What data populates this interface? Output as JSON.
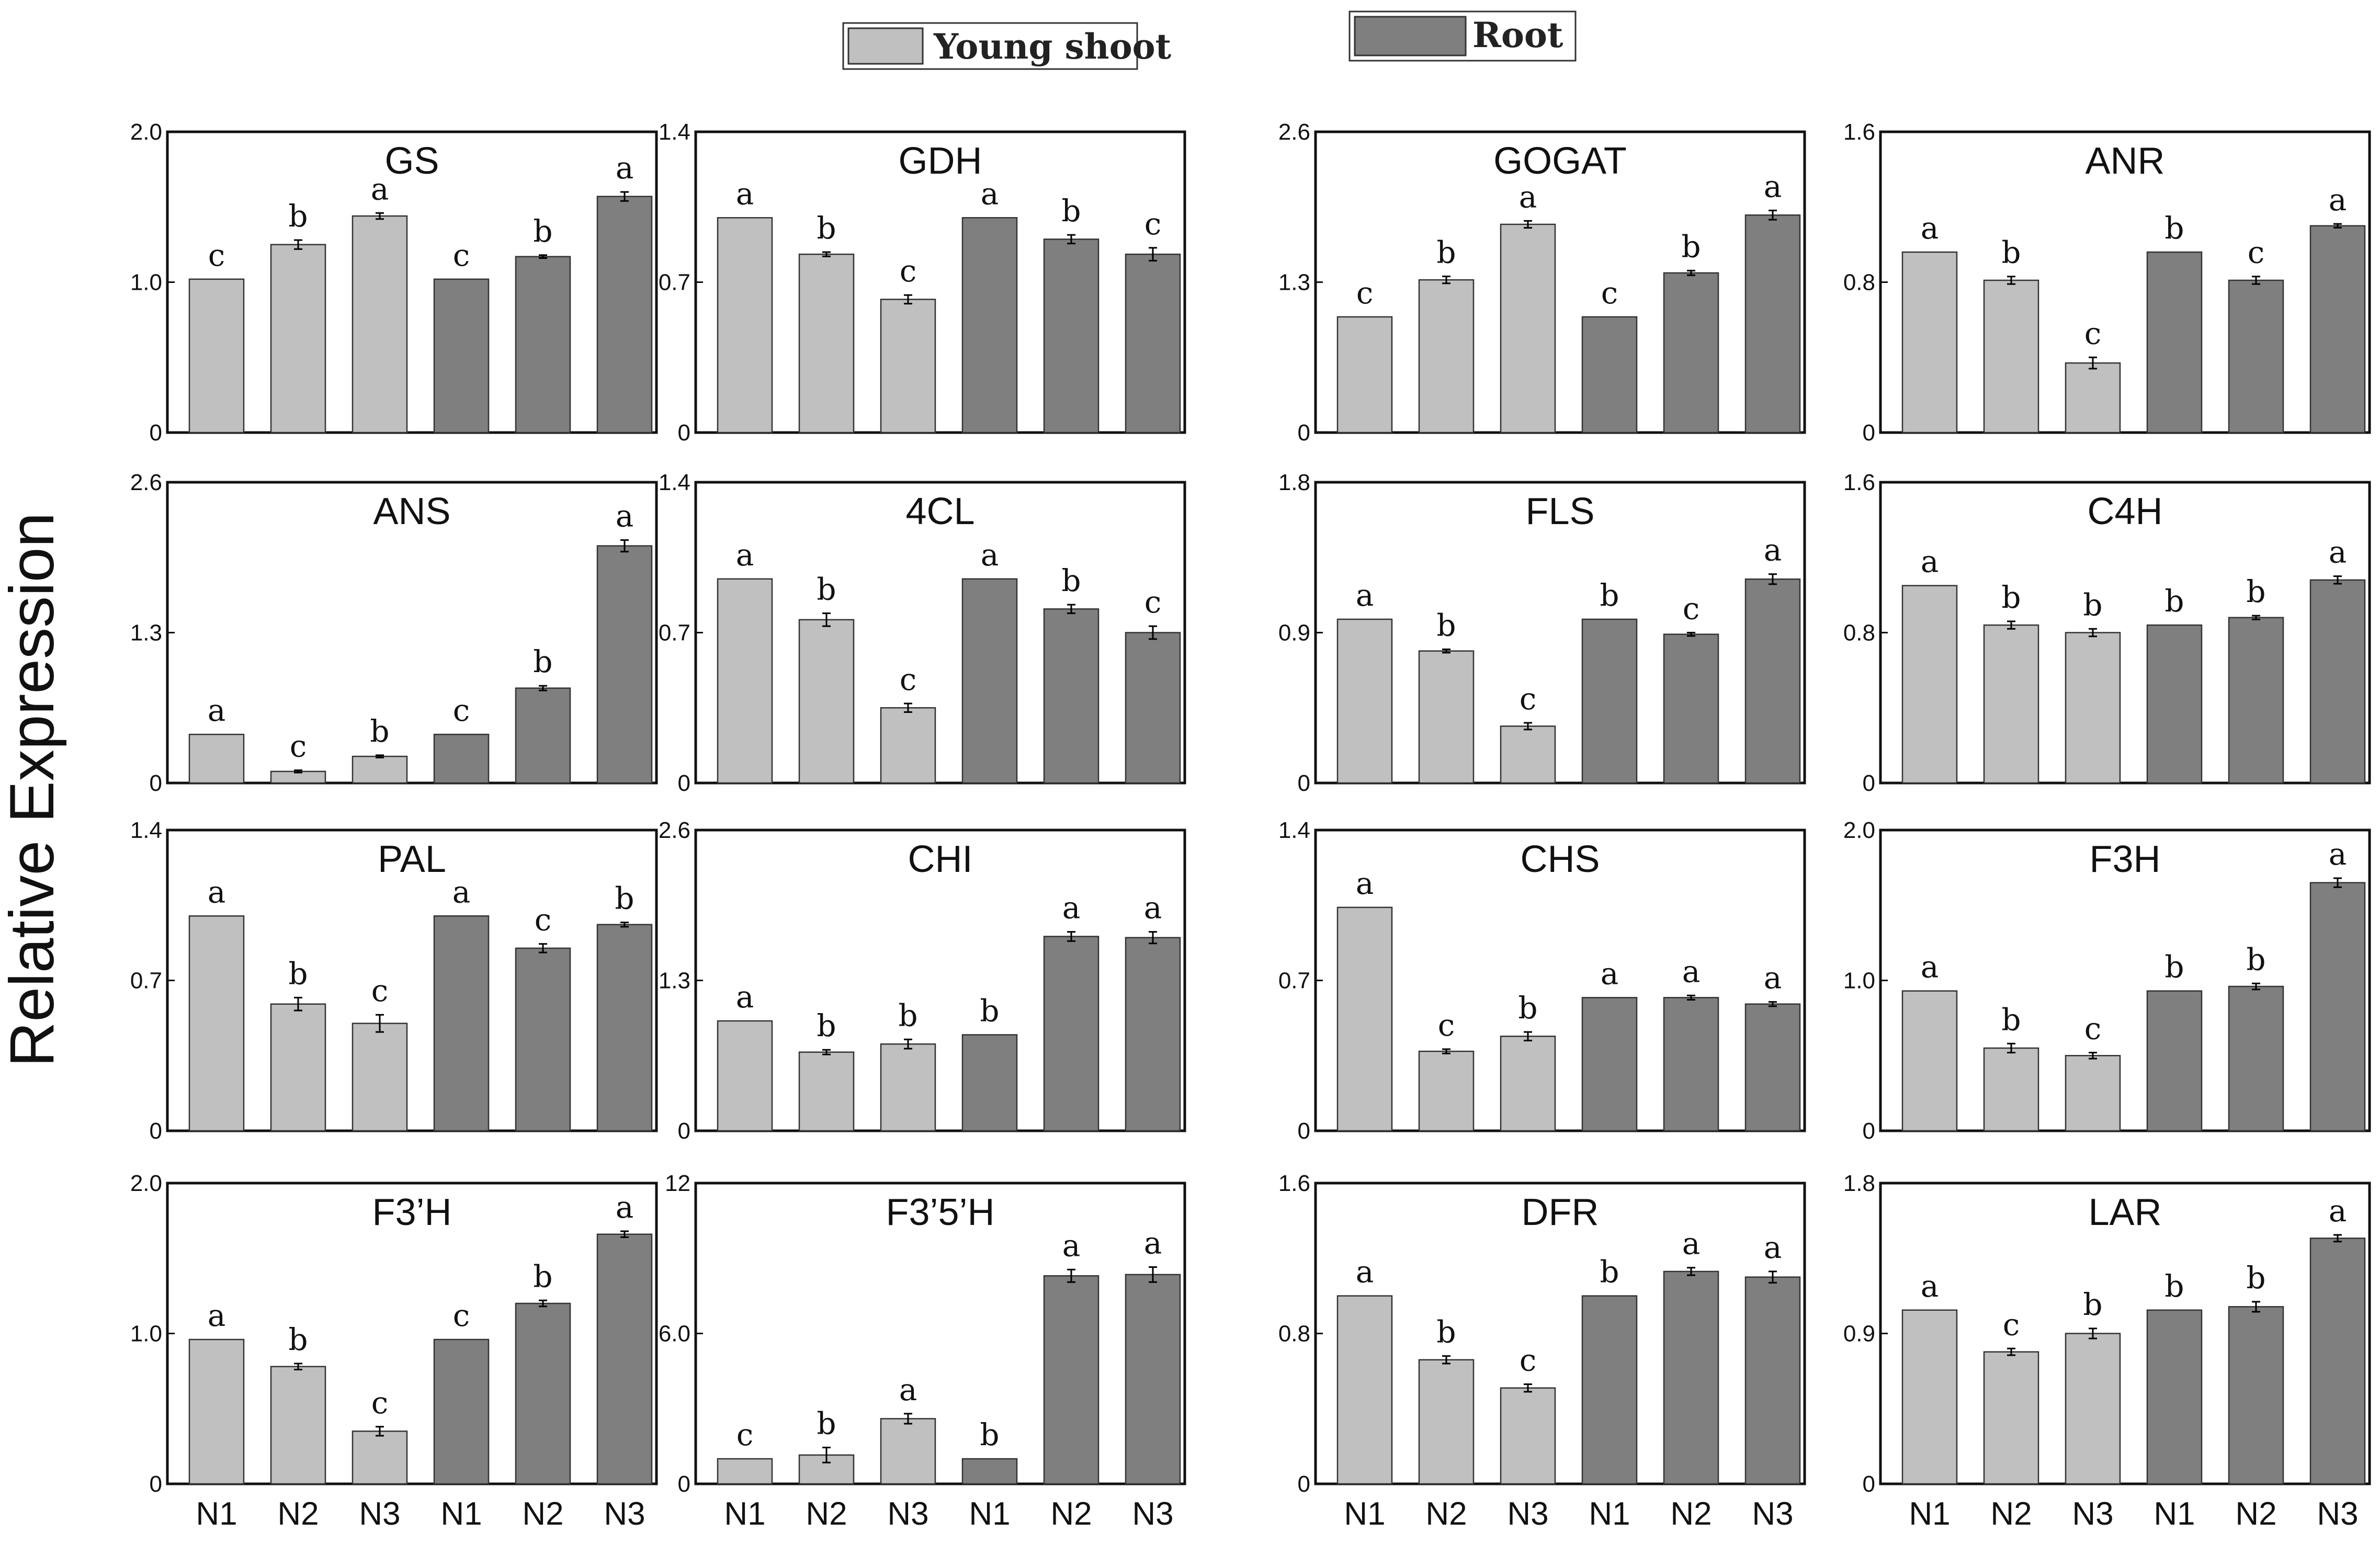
{
  "chart_data": {
    "type": "bar",
    "ylabel": "Relative Expression",
    "legend": [
      {
        "name": "Young shoot",
        "color": "#c0c0c0"
      },
      {
        "name": "Root",
        "color": "#7f7f7f"
      }
    ],
    "categories": [
      "N1",
      "N2",
      "N3",
      "N1",
      "N2",
      "N3"
    ],
    "category_groups": [
      "Young shoot",
      "Young shoot",
      "Young shoot",
      "Root",
      "Root",
      "Root"
    ],
    "panels": [
      {
        "title": "GS",
        "ylim": [
          0,
          2.0
        ],
        "yticks": [
          "0",
          "1.0",
          "2.0"
        ],
        "values": [
          1.02,
          1.25,
          1.44,
          1.02,
          1.17,
          1.57
        ],
        "errors": [
          0,
          0.03,
          0.02,
          0,
          0.01,
          0.03
        ],
        "letters": [
          "c",
          "b",
          "a",
          "c",
          "b",
          "a"
        ],
        "show_x": false
      },
      {
        "title": "GDH",
        "ylim": [
          0,
          1.4
        ],
        "yticks": [
          "0",
          "0.7",
          "1.4"
        ],
        "values": [
          1.0,
          0.83,
          0.62,
          1.0,
          0.9,
          0.83
        ],
        "errors": [
          0,
          0.01,
          0.02,
          0,
          0.02,
          0.03
        ],
        "letters": [
          "a",
          "b",
          "c",
          "a",
          "b",
          "c"
        ],
        "show_x": false
      },
      {
        "title": "GOGAT",
        "ylim": [
          0,
          2.6
        ],
        "yticks": [
          "0",
          "1.3",
          "2.6"
        ],
        "values": [
          1.0,
          1.32,
          1.8,
          1.0,
          1.38,
          1.88
        ],
        "errors": [
          0,
          0.03,
          0.03,
          0,
          0.02,
          0.04
        ],
        "letters": [
          "c",
          "b",
          "a",
          "c",
          "b",
          "a"
        ],
        "show_x": false
      },
      {
        "title": "ANR",
        "ylim": [
          0,
          1.6
        ],
        "yticks": [
          "0",
          "0.8",
          "1.6"
        ],
        "values": [
          0.96,
          0.81,
          0.37,
          0.96,
          0.81,
          1.1
        ],
        "errors": [
          0,
          0.02,
          0.03,
          0,
          0.02,
          0.01
        ],
        "letters": [
          "a",
          "b",
          "c",
          "b",
          "c",
          "a"
        ],
        "show_x": false
      },
      {
        "title": "ANS",
        "ylim": [
          0,
          2.6
        ],
        "yticks": [
          "0",
          "1.3",
          "2.6"
        ],
        "values": [
          0.42,
          0.1,
          0.23,
          0.42,
          0.82,
          2.05
        ],
        "errors": [
          0,
          0.01,
          0.01,
          0,
          0.02,
          0.05
        ],
        "letters": [
          "a",
          "c",
          "b",
          "c",
          "b",
          "a"
        ],
        "show_x": false
      },
      {
        "title": "4CL",
        "ylim": [
          0,
          1.4
        ],
        "yticks": [
          "0",
          "0.7",
          "1.4"
        ],
        "values": [
          0.95,
          0.76,
          0.35,
          0.95,
          0.81,
          0.7
        ],
        "errors": [
          0,
          0.03,
          0.02,
          0,
          0.02,
          0.03
        ],
        "letters": [
          "a",
          "b",
          "c",
          "a",
          "b",
          "c"
        ],
        "show_x": false
      },
      {
        "title": "FLS",
        "ylim": [
          0,
          1.8
        ],
        "yticks": [
          "0",
          "0.9",
          "1.8"
        ],
        "values": [
          0.98,
          0.79,
          0.34,
          0.98,
          0.89,
          1.22
        ],
        "errors": [
          0,
          0.01,
          0.02,
          0,
          0.01,
          0.03
        ],
        "letters": [
          "a",
          "b",
          "c",
          "b",
          "c",
          "a"
        ],
        "show_x": false
      },
      {
        "title": "C4H",
        "ylim": [
          0,
          1.6
        ],
        "yticks": [
          "0",
          "0.8",
          "1.6"
        ],
        "values": [
          1.05,
          0.84,
          0.8,
          0.84,
          0.88,
          1.08
        ],
        "errors": [
          0,
          0.02,
          0.02,
          0,
          0.01,
          0.02
        ],
        "letters": [
          "a",
          "b",
          "b",
          "b",
          "b",
          "a"
        ],
        "show_x": false
      },
      {
        "title": "PAL",
        "ylim": [
          0,
          1.4
        ],
        "yticks": [
          "0",
          "0.7",
          "1.4"
        ],
        "values": [
          1.0,
          0.59,
          0.5,
          1.0,
          0.85,
          0.96
        ],
        "errors": [
          0,
          0.03,
          0.04,
          0,
          0.02,
          0.01
        ],
        "letters": [
          "a",
          "b",
          "c",
          "a",
          "c",
          "b"
        ],
        "show_x": false
      },
      {
        "title": "CHI",
        "ylim": [
          0,
          2.6
        ],
        "yticks": [
          "0",
          "1.3",
          "2.6"
        ],
        "values": [
          0.95,
          0.68,
          0.75,
          0.83,
          1.68,
          1.67
        ],
        "errors": [
          0,
          0.02,
          0.04,
          0,
          0.04,
          0.05
        ],
        "letters": [
          "a",
          "b",
          "b",
          "b",
          "a",
          "a"
        ],
        "show_x": false
      },
      {
        "title": "CHS",
        "ylim": [
          0,
          1.4
        ],
        "yticks": [
          "0",
          "0.7",
          "1.4"
        ],
        "values": [
          1.04,
          0.37,
          0.44,
          0.62,
          0.62,
          0.59
        ],
        "errors": [
          0,
          0.01,
          0.02,
          0,
          0.01,
          0.01
        ],
        "letters": [
          "a",
          "c",
          "b",
          "a",
          "a",
          "a"
        ],
        "show_x": false
      },
      {
        "title": "F3H",
        "ylim": [
          0,
          2.0
        ],
        "yticks": [
          "0",
          "1.0",
          "2.0"
        ],
        "values": [
          0.93,
          0.55,
          0.5,
          0.93,
          0.96,
          1.65
        ],
        "errors": [
          0,
          0.03,
          0.02,
          0,
          0.02,
          0.03
        ],
        "letters": [
          "a",
          "b",
          "c",
          "b",
          "b",
          "a"
        ],
        "show_x": false
      },
      {
        "title": "F3’H",
        "ylim": [
          0,
          2.0
        ],
        "yticks": [
          "0",
          "1.0",
          "2.0"
        ],
        "values": [
          0.96,
          0.78,
          0.35,
          0.96,
          1.2,
          1.66
        ],
        "errors": [
          0,
          0.02,
          0.03,
          0,
          0.02,
          0.02
        ],
        "letters": [
          "a",
          "b",
          "c",
          "c",
          "b",
          "a"
        ],
        "show_x": true
      },
      {
        "title": "F3’5’H",
        "ylim": [
          0,
          12
        ],
        "yticks": [
          "0",
          "6.0",
          "12"
        ],
        "values": [
          1.0,
          1.15,
          2.6,
          1.0,
          8.3,
          8.35
        ],
        "errors": [
          0,
          0.3,
          0.2,
          0,
          0.25,
          0.3
        ],
        "letters": [
          "c",
          "b",
          "a",
          "b",
          "a",
          "a"
        ],
        "show_x": true
      },
      {
        "title": "DFR",
        "ylim": [
          0,
          1.6
        ],
        "yticks": [
          "0",
          "0.8",
          "1.6"
        ],
        "values": [
          1.0,
          0.66,
          0.51,
          1.0,
          1.13,
          1.1
        ],
        "errors": [
          0,
          0.02,
          0.02,
          0,
          0.02,
          0.03
        ],
        "letters": [
          "a",
          "b",
          "c",
          "b",
          "a",
          "a"
        ],
        "show_x": true
      },
      {
        "title": "LAR",
        "ylim": [
          0,
          1.8
        ],
        "yticks": [
          "0",
          "0.9",
          "1.8"
        ],
        "values": [
          1.04,
          0.79,
          0.9,
          1.04,
          1.06,
          1.47
        ],
        "errors": [
          0,
          0.02,
          0.03,
          0,
          0.03,
          0.02
        ],
        "letters": [
          "a",
          "c",
          "b",
          "b",
          "b",
          "a"
        ],
        "show_x": true
      }
    ]
  }
}
